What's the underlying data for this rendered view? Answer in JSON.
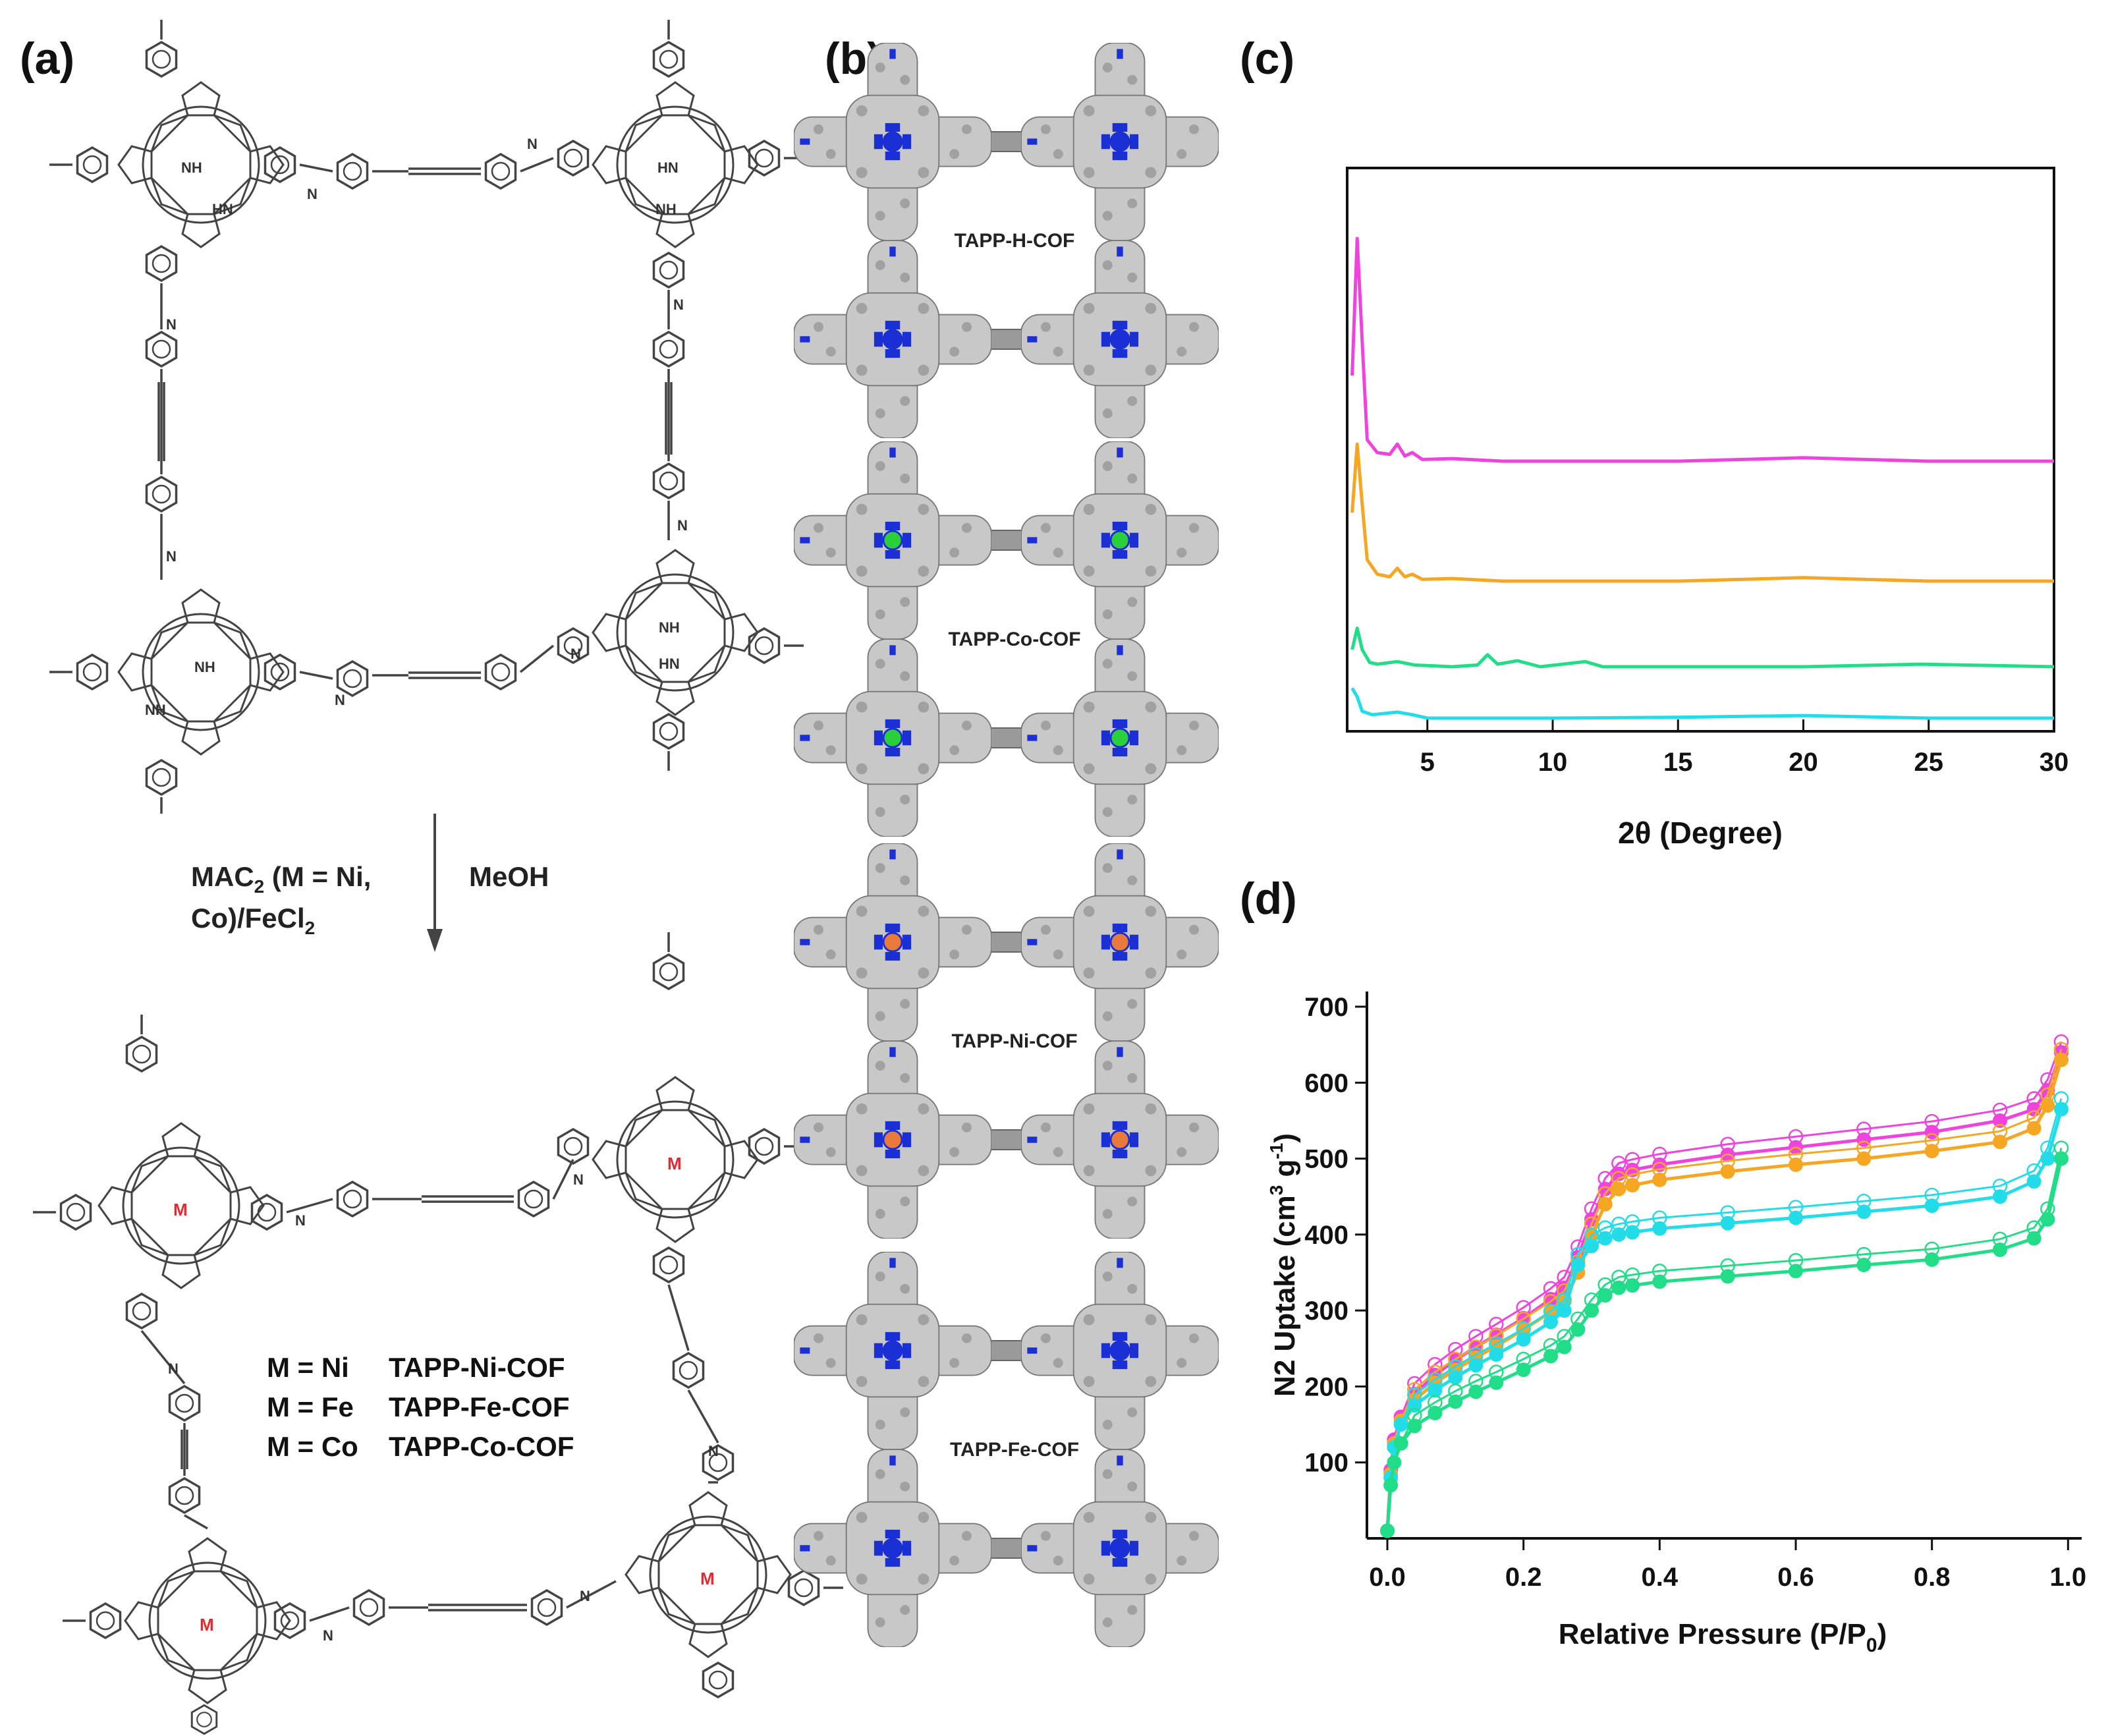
{
  "panels": {
    "a": "(a)",
    "b": "(b)",
    "c": "(c)",
    "d": "(d)"
  },
  "scheme": {
    "reaction_reagent_line1": "MAC",
    "reaction_reagent_sub": "2",
    "reaction_reagent_line1_rest": " (M = Ni,",
    "reaction_reagent_line2_a": "Co)/FeCl",
    "reaction_reagent_line2_sub": "2",
    "solvent": "MeOH",
    "atom_NH": "NH",
    "atom_HN": "HN",
    "atom_N": "N",
    "atom_M": "M",
    "legend_rows": [
      {
        "m": "M = Ni",
        "cof": "TAPP-Ni-COF"
      },
      {
        "m": "M = Fe",
        "cof": "TAPP-Fe-COF"
      },
      {
        "m": "M = Co",
        "cof": "TAPP-Co-COF"
      }
    ]
  },
  "structures": [
    {
      "label": "TAPP-H-COF",
      "center_color": "#1a2fd4"
    },
    {
      "label": "TAPP-Co-COF",
      "center_color": "#2bcf3a"
    },
    {
      "label": "TAPP-Ni-COF",
      "center_color": "#e87a3c"
    },
    {
      "label": "TAPP-Fe-COF",
      "center_color": "#1a2fd4"
    }
  ],
  "colors": {
    "magenta": "#ee44dd",
    "orange": "#f5a623",
    "green": "#22dd88",
    "cyan": "#22dde8",
    "bond": "#444444",
    "metal": "#e8282e"
  },
  "chart_data": [
    {
      "type": "line",
      "title": "",
      "xlabel": "2θ (Degree)",
      "ylabel": "",
      "xlim": [
        1.8,
        30
      ],
      "xticks": [
        "5",
        "10",
        "15",
        "20",
        "25",
        "30"
      ],
      "xtick_values": [
        5,
        10,
        15,
        20,
        25,
        30
      ],
      "series": [
        {
          "name": "TAPP-H-COF",
          "color": "#ee44dd",
          "offset": 3.0,
          "x": [
            2.0,
            2.2,
            2.4,
            2.6,
            3.0,
            3.5,
            3.8,
            4.1,
            4.4,
            4.8,
            6,
            8,
            10,
            15,
            20,
            25,
            30
          ],
          "y": [
            1.0,
            2.6,
            1.4,
            0.25,
            0.1,
            0.08,
            0.2,
            0.06,
            0.1,
            0.02,
            0.03,
            0.0,
            0.0,
            0.0,
            0.04,
            0.0,
            0.0
          ]
        },
        {
          "name": "TAPP-Co-COF",
          "color": "#f5a623",
          "offset": 1.6,
          "x": [
            2.0,
            2.2,
            2.4,
            2.6,
            3.0,
            3.5,
            3.8,
            4.1,
            4.4,
            4.8,
            6,
            8,
            10,
            15,
            20,
            25,
            30
          ],
          "y": [
            0.8,
            1.6,
            0.9,
            0.25,
            0.08,
            0.05,
            0.15,
            0.05,
            0.08,
            0.02,
            0.03,
            0.0,
            0.0,
            0.0,
            0.04,
            0.0,
            0.0
          ]
        },
        {
          "name": "TAPP-Ni-COF",
          "color": "#22dd88",
          "offset": 0.6,
          "x": [
            2.0,
            2.2,
            2.4,
            2.7,
            3.0,
            3.8,
            4.5,
            6,
            7.0,
            7.4,
            7.8,
            8.6,
            9.5,
            11.3,
            12,
            20,
            24.7,
            30
          ],
          "y": [
            0.2,
            0.45,
            0.2,
            0.05,
            0.03,
            0.06,
            0.02,
            0.0,
            0.02,
            0.14,
            0.03,
            0.07,
            0.0,
            0.06,
            0.0,
            0.0,
            0.03,
            0.0
          ]
        },
        {
          "name": "TAPP-Fe-COF",
          "color": "#22dde8",
          "offset": 0.0,
          "x": [
            2.0,
            2.2,
            2.4,
            2.8,
            3.8,
            4.4,
            5,
            10,
            15,
            20,
            25,
            30
          ],
          "y": [
            0.35,
            0.25,
            0.08,
            0.04,
            0.07,
            0.04,
            0.0,
            0.0,
            0.01,
            0.03,
            0.0,
            0.0
          ]
        }
      ]
    },
    {
      "type": "line",
      "title": "",
      "xlabel": "Relative Pressure (P/P",
      "xlabel_sub": "0",
      "xlabel_end": ")",
      "ylabel": "N2 Uptake (cm",
      "ylabel_sup": "3",
      "ylabel_mid": " g",
      "ylabel_sup2": "-1",
      "ylabel_end": ")",
      "xlim": [
        -0.03,
        1.02
      ],
      "ylim": [
        0,
        720
      ],
      "xticks": [
        "0.0",
        "0.2",
        "0.4",
        "0.6",
        "0.8",
        "1.0"
      ],
      "xtick_values": [
        0.0,
        0.2,
        0.4,
        0.6,
        0.8,
        1.0
      ],
      "yticks": [
        "100",
        "200",
        "300",
        "400",
        "500",
        "600",
        "700"
      ],
      "ytick_values": [
        100,
        200,
        300,
        400,
        500,
        600,
        700
      ],
      "series": [
        {
          "name": "magenta",
          "color": "#ee44dd",
          "x": [
            0.0,
            0.005,
            0.01,
            0.02,
            0.04,
            0.07,
            0.1,
            0.13,
            0.16,
            0.2,
            0.24,
            0.26,
            0.28,
            0.3,
            0.32,
            0.34,
            0.36,
            0.4,
            0.5,
            0.6,
            0.7,
            0.8,
            0.9,
            0.95,
            0.97,
            0.99
          ],
          "y": [
            10,
            90,
            130,
            160,
            190,
            215,
            235,
            252,
            268,
            290,
            315,
            330,
            370,
            420,
            460,
            480,
            485,
            492,
            505,
            515,
            525,
            535,
            550,
            565,
            590,
            640
          ]
        },
        {
          "name": "orange",
          "color": "#f5a623",
          "x": [
            0.0,
            0.005,
            0.01,
            0.02,
            0.04,
            0.07,
            0.1,
            0.13,
            0.16,
            0.2,
            0.24,
            0.26,
            0.28,
            0.3,
            0.32,
            0.34,
            0.36,
            0.4,
            0.5,
            0.6,
            0.7,
            0.8,
            0.9,
            0.95,
            0.97,
            0.99
          ],
          "y": [
            10,
            85,
            125,
            155,
            182,
            205,
            222,
            238,
            253,
            275,
            298,
            312,
            350,
            400,
            440,
            460,
            465,
            472,
            483,
            492,
            500,
            510,
            522,
            540,
            570,
            630
          ]
        },
        {
          "name": "cyan",
          "color": "#22dde8",
          "x": [
            0.0,
            0.005,
            0.01,
            0.02,
            0.04,
            0.07,
            0.1,
            0.13,
            0.16,
            0.2,
            0.24,
            0.26,
            0.28,
            0.3,
            0.32,
            0.34,
            0.36,
            0.4,
            0.5,
            0.6,
            0.7,
            0.8,
            0.9,
            0.95,
            0.97,
            0.99
          ],
          "y": [
            10,
            80,
            120,
            150,
            175,
            195,
            212,
            228,
            242,
            262,
            285,
            300,
            360,
            385,
            395,
            400,
            403,
            408,
            415,
            422,
            430,
            438,
            450,
            470,
            500,
            565
          ]
        },
        {
          "name": "green",
          "color": "#22dd88",
          "x": [
            0.0,
            0.005,
            0.01,
            0.02,
            0.04,
            0.07,
            0.1,
            0.13,
            0.16,
            0.2,
            0.24,
            0.26,
            0.28,
            0.3,
            0.32,
            0.34,
            0.36,
            0.4,
            0.5,
            0.6,
            0.7,
            0.8,
            0.9,
            0.95,
            0.97,
            0.99
          ],
          "y": [
            10,
            70,
            100,
            125,
            148,
            165,
            180,
            193,
            205,
            222,
            240,
            252,
            275,
            300,
            320,
            330,
            333,
            338,
            345,
            352,
            360,
            367,
            380,
            395,
            420,
            500
          ]
        }
      ]
    }
  ]
}
